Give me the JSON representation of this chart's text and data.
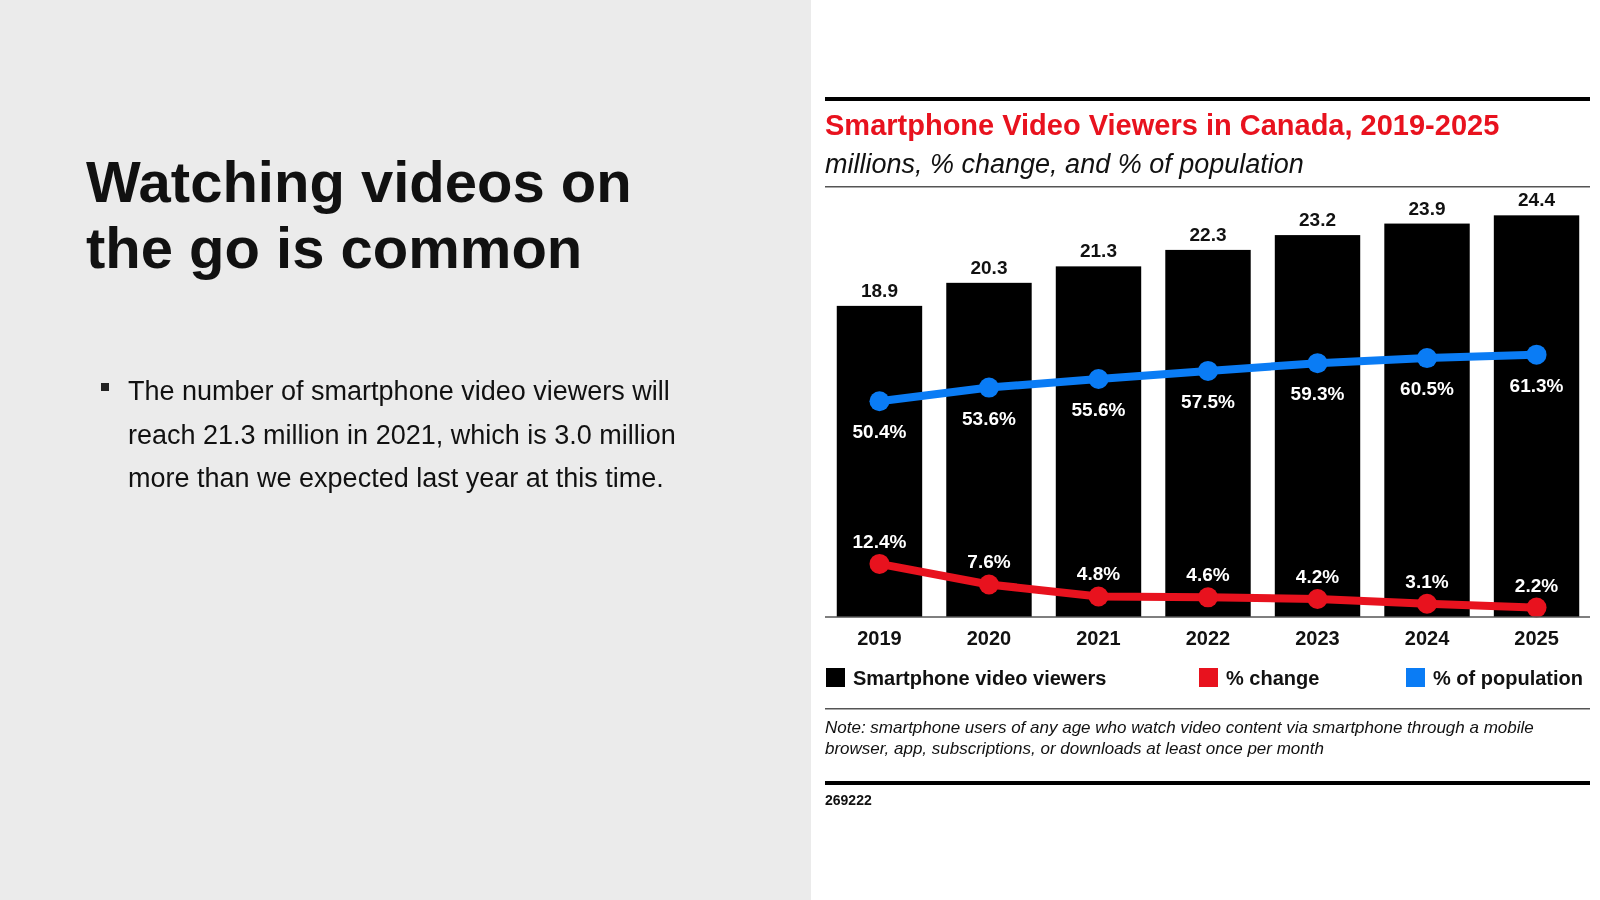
{
  "chart_data": {
    "type": "bar",
    "title": "Smartphone Video Viewers in Canada, 2019-2025",
    "subtitle": "millions, % change, and % of population",
    "categories": [
      "2019",
      "2020",
      "2021",
      "2022",
      "2023",
      "2024",
      "2025"
    ],
    "series": [
      {
        "name": "Smartphone video viewers",
        "color": "#000000",
        "values": [
          18.9,
          20.3,
          21.3,
          22.3,
          23.2,
          23.9,
          24.4
        ]
      },
      {
        "name": "% change",
        "type": "line",
        "axis": "y2",
        "color": "#e8121e",
        "values": [
          12.4,
          7.6,
          4.8,
          4.6,
          4.2,
          3.1,
          2.2
        ],
        "value_labels": [
          "12.4%",
          "7.6%",
          "4.8%",
          "4.6%",
          "4.2%",
          "3.1%",
          "2.2%"
        ]
      },
      {
        "name": "% of population",
        "type": "line",
        "axis": "y2",
        "color": "#0a7cf5",
        "values": [
          50.4,
          53.6,
          55.6,
          57.5,
          59.3,
          60.5,
          61.3
        ],
        "value_labels": [
          "50.4%",
          "53.6%",
          "55.6%",
          "57.5%",
          "59.3%",
          "60.5%",
          "61.3%"
        ]
      }
    ],
    "ylim": [
      0,
      26
    ],
    "y2lim": [
      0,
      100
    ],
    "tick_labels": "x",
    "data_labels": true,
    "legend": "bottom",
    "marker": "circle",
    "annotations": [
      "Watching videos on the go is common",
      "The number of smartphone video viewers will reach 21.3 million in 2021, which is 3.0 million more than we expected last year at this time.",
      "Note: smartphone users of any age who watch video content via smartphone through a mobile browser, app, subscriptions, or downloads at least once per month",
      "269222"
    ]
  }
}
